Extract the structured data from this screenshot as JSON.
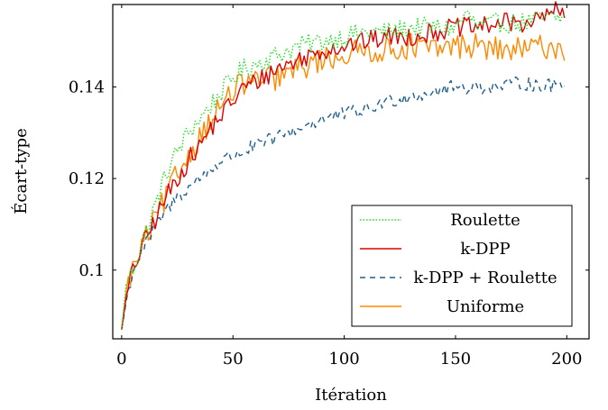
{
  "chart_data": {
    "type": "line",
    "xlabel": "Itération",
    "ylabel": "Écart-type",
    "xlim": [
      -4,
      210
    ],
    "ylim": [
      0.085,
      0.158
    ],
    "x_ticks": [
      0,
      50,
      100,
      150,
      200
    ],
    "x_tick_labels": [
      "0",
      "50",
      "100",
      "150",
      "200"
    ],
    "y_ticks": [
      0.1,
      0.12,
      0.14
    ],
    "y_tick_labels": [
      "0.1",
      "0.12",
      "0.14"
    ],
    "grid": false,
    "legend_position": "bottom-right",
    "series": [
      {
        "name": "Roulette",
        "color": "#22dd22",
        "dash": "dotted",
        "anchors": [
          [
            0,
            0.087
          ],
          [
            2,
            0.097
          ],
          [
            5,
            0.1
          ],
          [
            10,
            0.107
          ],
          [
            15,
            0.114
          ],
          [
            20,
            0.121
          ],
          [
            25,
            0.126
          ],
          [
            30,
            0.13
          ],
          [
            35,
            0.133
          ],
          [
            40,
            0.136
          ],
          [
            45,
            0.139
          ],
          [
            50,
            0.142
          ],
          [
            55,
            0.144
          ],
          [
            60,
            0.145
          ],
          [
            70,
            0.147
          ],
          [
            80,
            0.149
          ],
          [
            90,
            0.15
          ],
          [
            100,
            0.151
          ],
          [
            110,
            0.152
          ],
          [
            120,
            0.152
          ],
          [
            130,
            0.153
          ],
          [
            140,
            0.153
          ],
          [
            150,
            0.153
          ],
          [
            155,
            0.156
          ],
          [
            160,
            0.153
          ],
          [
            170,
            0.154
          ],
          [
            180,
            0.154
          ],
          [
            190,
            0.155
          ],
          [
            200,
            0.155
          ]
        ],
        "noise": 0.0022
      },
      {
        "name": "k-DPP",
        "color": "#dd0000",
        "dash": "solid",
        "anchors": [
          [
            0,
            0.087
          ],
          [
            2,
            0.094
          ],
          [
            5,
            0.1
          ],
          [
            10,
            0.106
          ],
          [
            15,
            0.111
          ],
          [
            20,
            0.116
          ],
          [
            25,
            0.12
          ],
          [
            30,
            0.124
          ],
          [
            35,
            0.127
          ],
          [
            40,
            0.131
          ],
          [
            45,
            0.134
          ],
          [
            50,
            0.137
          ],
          [
            55,
            0.14
          ],
          [
            60,
            0.141
          ],
          [
            70,
            0.144
          ],
          [
            80,
            0.146
          ],
          [
            90,
            0.148
          ],
          [
            100,
            0.149
          ],
          [
            110,
            0.15
          ],
          [
            120,
            0.151
          ],
          [
            130,
            0.151
          ],
          [
            140,
            0.152
          ],
          [
            150,
            0.153
          ],
          [
            160,
            0.153
          ],
          [
            170,
            0.154
          ],
          [
            180,
            0.154
          ],
          [
            190,
            0.155
          ],
          [
            193,
            0.157
          ],
          [
            200,
            0.155
          ]
        ],
        "noise": 0.0022
      },
      {
        "name": "k-DPP + Roulette",
        "color": "#1f5f8f",
        "dash": "dashed",
        "anchors": [
          [
            0,
            0.087
          ],
          [
            2,
            0.093
          ],
          [
            5,
            0.1
          ],
          [
            10,
            0.105
          ],
          [
            15,
            0.109
          ],
          [
            20,
            0.113
          ],
          [
            25,
            0.116
          ],
          [
            30,
            0.118
          ],
          [
            35,
            0.12
          ],
          [
            40,
            0.122
          ],
          [
            45,
            0.124
          ],
          [
            50,
            0.125
          ],
          [
            60,
            0.127
          ],
          [
            70,
            0.129
          ],
          [
            80,
            0.131
          ],
          [
            90,
            0.133
          ],
          [
            100,
            0.134
          ],
          [
            110,
            0.135
          ],
          [
            120,
            0.137
          ],
          [
            130,
            0.138
          ],
          [
            140,
            0.139
          ],
          [
            150,
            0.14
          ],
          [
            160,
            0.14
          ],
          [
            170,
            0.14
          ],
          [
            180,
            0.141
          ],
          [
            190,
            0.14
          ],
          [
            200,
            0.141
          ]
        ],
        "noise": 0.0016
      },
      {
        "name": "Uniforme",
        "color": "#ff8800",
        "dash": "solid",
        "anchors": [
          [
            0,
            0.087
          ],
          [
            2,
            0.095
          ],
          [
            5,
            0.1
          ],
          [
            10,
            0.106
          ],
          [
            15,
            0.111
          ],
          [
            20,
            0.116
          ],
          [
            25,
            0.121
          ],
          [
            30,
            0.125
          ],
          [
            35,
            0.129
          ],
          [
            40,
            0.133
          ],
          [
            45,
            0.136
          ],
          [
            50,
            0.139
          ],
          [
            55,
            0.141
          ],
          [
            60,
            0.141
          ],
          [
            70,
            0.142
          ],
          [
            80,
            0.144
          ],
          [
            90,
            0.146
          ],
          [
            100,
            0.147
          ],
          [
            110,
            0.148
          ],
          [
            120,
            0.148
          ],
          [
            130,
            0.149
          ],
          [
            140,
            0.148
          ],
          [
            150,
            0.149
          ],
          [
            160,
            0.149
          ],
          [
            170,
            0.148
          ],
          [
            180,
            0.148
          ],
          [
            190,
            0.149
          ],
          [
            200,
            0.148
          ]
        ],
        "noise": 0.0028
      }
    ]
  }
}
